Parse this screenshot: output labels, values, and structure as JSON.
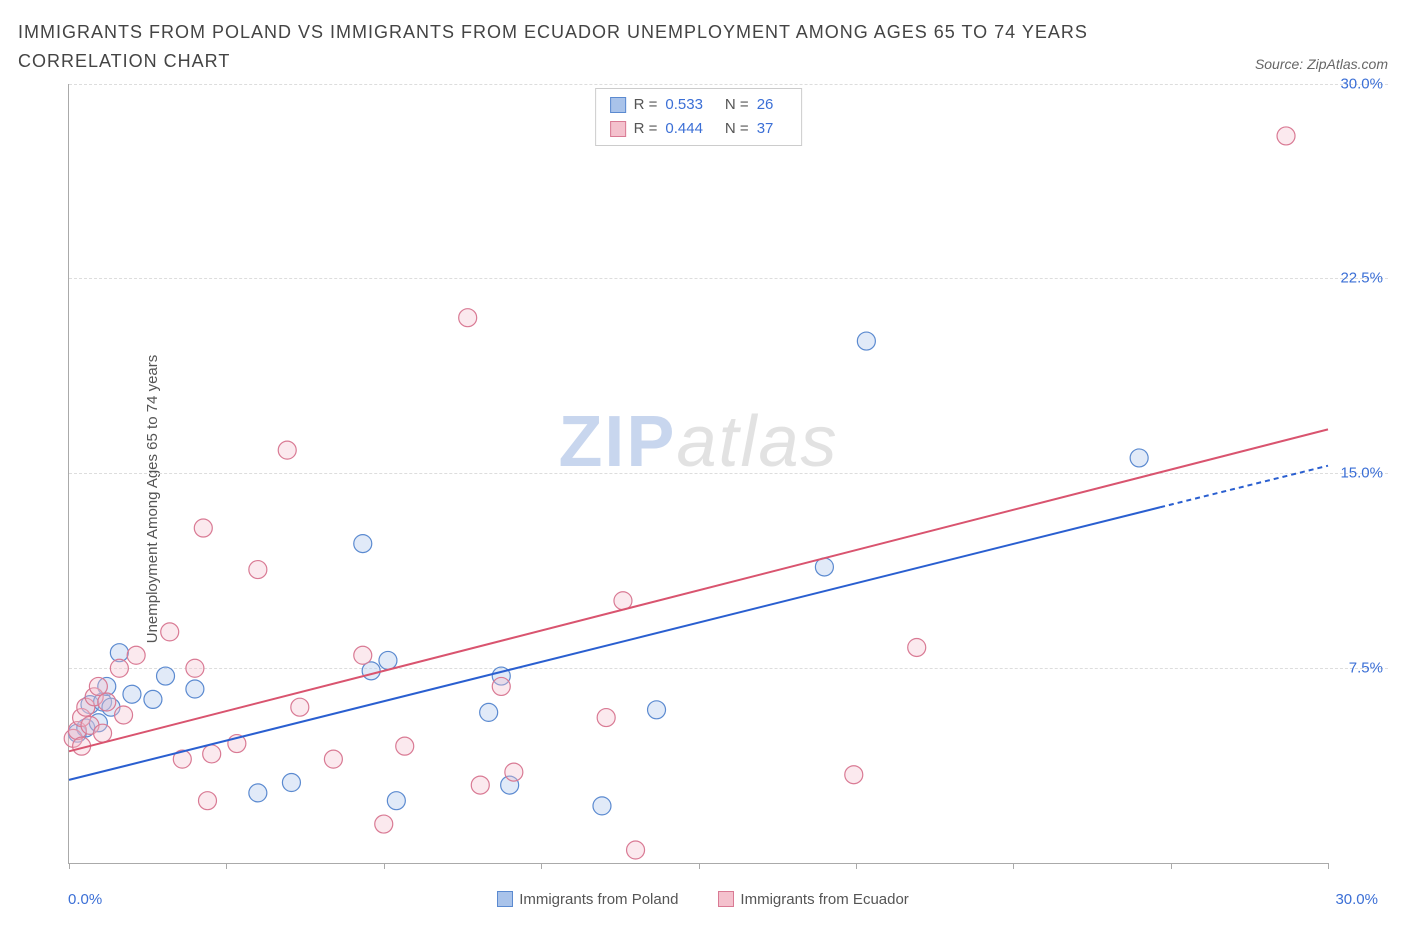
{
  "title": "IMMIGRANTS FROM POLAND VS IMMIGRANTS FROM ECUADOR UNEMPLOYMENT AMONG AGES 65 TO 74 YEARS CORRELATION CHART",
  "source": "Source: ZipAtlas.com",
  "y_axis_label": "Unemployment Among Ages 65 to 74 years",
  "watermark_zip": "ZIP",
  "watermark_atlas": "atlas",
  "chart": {
    "type": "scatter",
    "xlim": [
      0,
      30
    ],
    "ylim": [
      0,
      30
    ],
    "x_tick_positions": [
      0,
      3.75,
      7.5,
      11.25,
      15,
      18.75,
      22.5,
      26.25,
      30
    ],
    "y_ticks": [
      7.5,
      15.0,
      22.5,
      30.0
    ],
    "y_tick_labels": [
      "7.5%",
      "15.0%",
      "22.5%",
      "30.0%"
    ],
    "x_min_label": "0.0%",
    "x_max_label": "30.0%",
    "grid_color": "#dddddd",
    "axis_color": "#aaaaaa",
    "tick_label_color": "#3b6fd6",
    "marker_radius": 9,
    "marker_stroke_width": 1.2,
    "marker_fill_opacity": 0.35,
    "trend_line_width": 2,
    "trend_dash": "5,4"
  },
  "legend_box": {
    "rows": [
      {
        "swatch_fill": "#a9c3ea",
        "swatch_border": "#5b8ad0",
        "r_label": "R =",
        "r_value": "0.533",
        "n_label": "N =",
        "n_value": "26"
      },
      {
        "swatch_fill": "#f4c1cd",
        "swatch_border": "#d97a94",
        "r_label": "R =",
        "r_value": "0.444",
        "n_label": "N =",
        "n_value": "37"
      }
    ]
  },
  "bottom_legend": [
    {
      "label": "Immigrants from Poland",
      "swatch_fill": "#a9c3ea",
      "swatch_border": "#5b8ad0"
    },
    {
      "label": "Immigrants from Ecuador",
      "swatch_fill": "#f4c1cd",
      "swatch_border": "#d97a94"
    }
  ],
  "series": [
    {
      "name": "Immigrants from Poland",
      "color_fill": "#a9c3ea",
      "color_stroke": "#5b8ad0",
      "trend_color": "#2a5fd0",
      "trend": {
        "x1": 0,
        "y1": 3.2,
        "x2": 26,
        "y2": 13.7,
        "extend_x2": 30,
        "extend_y2": 15.3
      },
      "points": [
        [
          0.2,
          5.0
        ],
        [
          0.4,
          5.2
        ],
        [
          0.5,
          6.1
        ],
        [
          0.7,
          5.4
        ],
        [
          0.8,
          6.2
        ],
        [
          0.9,
          6.8
        ],
        [
          1.0,
          6.0
        ],
        [
          1.2,
          8.1
        ],
        [
          1.5,
          6.5
        ],
        [
          2.0,
          6.3
        ],
        [
          2.3,
          7.2
        ],
        [
          3.0,
          6.7
        ],
        [
          4.5,
          2.7
        ],
        [
          5.3,
          3.1
        ],
        [
          7.0,
          12.3
        ],
        [
          7.2,
          7.4
        ],
        [
          7.6,
          7.8
        ],
        [
          7.8,
          2.4
        ],
        [
          10.0,
          5.8
        ],
        [
          10.3,
          7.2
        ],
        [
          10.5,
          3.0
        ],
        [
          12.7,
          2.2
        ],
        [
          14.0,
          5.9
        ],
        [
          18.0,
          11.4
        ],
        [
          19.0,
          20.1
        ],
        [
          25.5,
          15.6
        ]
      ]
    },
    {
      "name": "Immigrants from Ecuador",
      "color_fill": "#f4c1cd",
      "color_stroke": "#d97a94",
      "trend_color": "#d9546f",
      "trend": {
        "x1": 0,
        "y1": 4.3,
        "x2": 30,
        "y2": 16.7
      },
      "points": [
        [
          0.1,
          4.8
        ],
        [
          0.2,
          5.1
        ],
        [
          0.3,
          4.5
        ],
        [
          0.3,
          5.6
        ],
        [
          0.4,
          6.0
        ],
        [
          0.5,
          5.3
        ],
        [
          0.6,
          6.4
        ],
        [
          0.7,
          6.8
        ],
        [
          0.8,
          5.0
        ],
        [
          0.9,
          6.2
        ],
        [
          1.2,
          7.5
        ],
        [
          1.3,
          5.7
        ],
        [
          1.6,
          8.0
        ],
        [
          2.4,
          8.9
        ],
        [
          2.7,
          4.0
        ],
        [
          3.0,
          7.5
        ],
        [
          3.2,
          12.9
        ],
        [
          3.3,
          2.4
        ],
        [
          3.4,
          4.2
        ],
        [
          4.0,
          4.6
        ],
        [
          4.5,
          11.3
        ],
        [
          5.2,
          15.9
        ],
        [
          5.5,
          6.0
        ],
        [
          6.3,
          4.0
        ],
        [
          7.0,
          8.0
        ],
        [
          7.5,
          1.5
        ],
        [
          8.0,
          4.5
        ],
        [
          9.5,
          21.0
        ],
        [
          9.8,
          3.0
        ],
        [
          10.3,
          6.8
        ],
        [
          10.6,
          3.5
        ],
        [
          12.8,
          5.6
        ],
        [
          13.2,
          10.1
        ],
        [
          13.5,
          0.5
        ],
        [
          18.7,
          3.4
        ],
        [
          20.2,
          8.3
        ],
        [
          29.0,
          28.0
        ]
      ]
    }
  ]
}
